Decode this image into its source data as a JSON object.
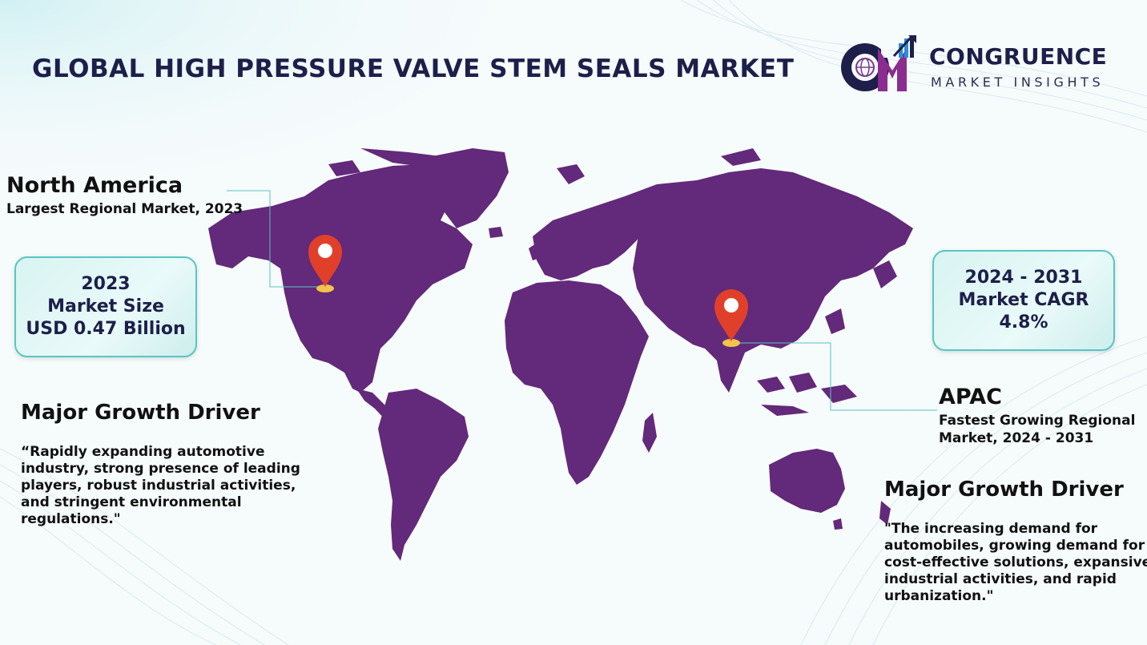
{
  "title": "GLOBAL HIGH PRESSURE VALVE STEM SEALS MARKET",
  "logo": {
    "monogram": "CM",
    "name": "CONGRUENCE",
    "subtitle": "MARKET INSIGHTS"
  },
  "north_america": {
    "name": "North America",
    "subtitle": "Largest Regional Market, 2023"
  },
  "market_size": {
    "year": "2023",
    "label": "Market Size",
    "value": "USD 0.47 Billion"
  },
  "cagr": {
    "period": "2024 - 2031",
    "label": "Market CAGR",
    "value": "4.8%"
  },
  "apac": {
    "name": "APAC",
    "subtitle_line1": "Fastest Growing Regional",
    "subtitle_line2": "Market, 2024 - 2031"
  },
  "driver_left": {
    "title": "Major Growth Driver",
    "lines": [
      "“Rapidly expanding automotive",
      "industry, strong presence of leading",
      "players, robust industrial activities,",
      "and stringent environmental",
      "regulations.\""
    ]
  },
  "driver_right": {
    "title": "Major Growth Driver",
    "lines": [
      "\"The increasing demand for",
      "automobiles, growing demand for",
      "cost-effective solutions, expansive",
      "industrial activities, and rapid",
      "urbanization.\""
    ]
  },
  "colors": {
    "map": "#63297a",
    "pin": "#e0402a",
    "pin_base": "#f3c34a",
    "accent_teal": "#58c6c1",
    "title_navy": "#1d1f4a"
  }
}
